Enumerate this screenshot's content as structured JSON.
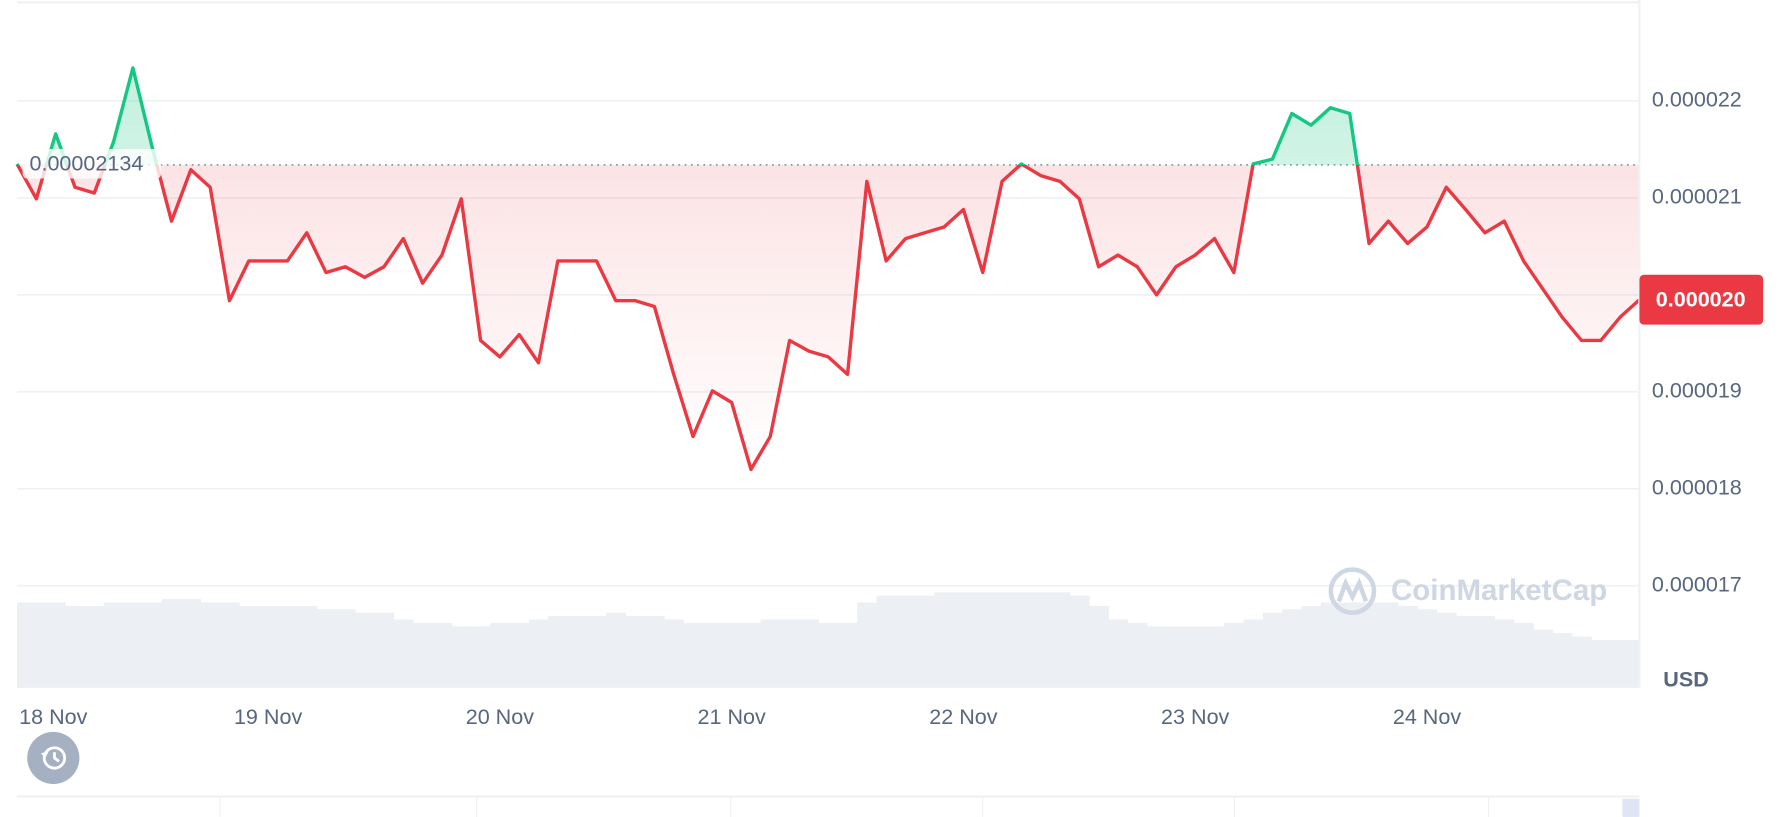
{
  "chart_data": {
    "type": "line",
    "categories": [
      null,
      "18 Nov",
      null,
      null,
      null,
      null,
      null,
      null,
      null,
      null,
      null,
      null,
      null,
      "19 Nov",
      null,
      null,
      null,
      null,
      null,
      null,
      null,
      null,
      null,
      null,
      null,
      "20 Nov",
      null,
      null,
      null,
      null,
      null,
      null,
      null,
      null,
      null,
      null,
      null,
      "21 Nov",
      null,
      null,
      null,
      null,
      null,
      null,
      null,
      null,
      null,
      null,
      null,
      "22 Nov",
      null,
      null,
      null,
      null,
      null,
      null,
      null,
      null,
      null,
      null,
      null,
      "23 Nov",
      null,
      null,
      null,
      null,
      null,
      null,
      null,
      null,
      null,
      null,
      null,
      "24 Nov",
      null,
      null,
      null,
      null,
      null,
      null,
      null,
      null,
      null,
      null,
      null
    ],
    "values": [
      2.135e-05,
      2.099e-05,
      2.166e-05,
      2.111e-05,
      2.105e-05,
      2.158e-05,
      2.234e-05,
      2.152e-05,
      2.076e-05,
      2.129e-05,
      2.111e-05,
      1.994e-05,
      2.035e-05,
      2.035e-05,
      2.035e-05,
      2.064e-05,
      2.023e-05,
      2.029e-05,
      2.018e-05,
      2.029e-05,
      2.058e-05,
      2.012e-05,
      2.041e-05,
      2.099e-05,
      1.953e-05,
      1.936e-05,
      1.959e-05,
      1.93e-05,
      2.035e-05,
      2.035e-05,
      2.035e-05,
      1.994e-05,
      1.994e-05,
      1.988e-05,
      1.918e-05,
      1.854e-05,
      1.901e-05,
      1.889e-05,
      1.82e-05,
      1.854e-05,
      1.953e-05,
      1.942e-05,
      1.936e-05,
      1.918e-05,
      2.117e-05,
      2.035e-05,
      2.058e-05,
      2.064e-05,
      2.07e-05,
      2.088e-05,
      2.023e-05,
      2.117e-05,
      2.135e-05,
      2.123e-05,
      2.117e-05,
      2.099e-05,
      2.029e-05,
      2.041e-05,
      2.029e-05,
      2e-05,
      2.029e-05,
      2.041e-05,
      2.058e-05,
      2.023e-05,
      2.135e-05,
      2.14e-05,
      2.187e-05,
      2.175e-05,
      2.193e-05,
      2.187e-05,
      2.053e-05,
      2.076e-05,
      2.053e-05,
      2.07e-05,
      2.111e-05,
      2.088e-05,
      2.064e-05,
      2.076e-05,
      2.035e-05,
      2.006e-05,
      1.977e-05,
      1.953e-05,
      1.953e-05,
      1.977e-05,
      1.995e-05
    ],
    "color_up": "#16c784",
    "color_down": "#ea3943",
    "baseline": 2.134e-05,
    "price_tag": "0.000020",
    "ylim": [
      1.595e-05,
      2.304e-05
    ],
    "yticks": [
      1.7e-05,
      1.8e-05,
      1.9e-05,
      {
        "value": 2e-05,
        "label": "0.000020"
      },
      2.1e-05,
      2.2e-05
    ],
    "grid": true,
    "y_axis_label": "USD",
    "watermark": "CoinMarketCap",
    "volume": [
      25,
      25,
      25,
      24,
      24,
      25,
      25,
      25,
      26,
      26,
      25,
      25,
      24,
      24,
      24,
      24,
      23,
      23,
      22,
      22,
      20,
      19,
      19,
      18,
      18,
      19,
      19,
      20,
      21,
      21,
      21,
      22,
      21,
      21,
      20,
      19,
      19,
      19,
      19,
      20,
      20,
      20,
      19,
      19,
      25,
      27,
      27,
      27,
      28,
      28,
      28,
      28,
      28,
      28,
      28,
      27,
      24,
      20,
      19,
      18,
      18,
      18,
      18,
      19,
      20,
      22,
      23,
      24,
      25,
      25,
      25,
      25,
      24,
      23,
      22,
      21,
      21,
      20,
      19,
      17,
      16,
      15,
      14,
      14,
      14
    ],
    "volume_ylim": [
      0,
      100
    ],
    "volume_color": "#eceff3"
  }
}
